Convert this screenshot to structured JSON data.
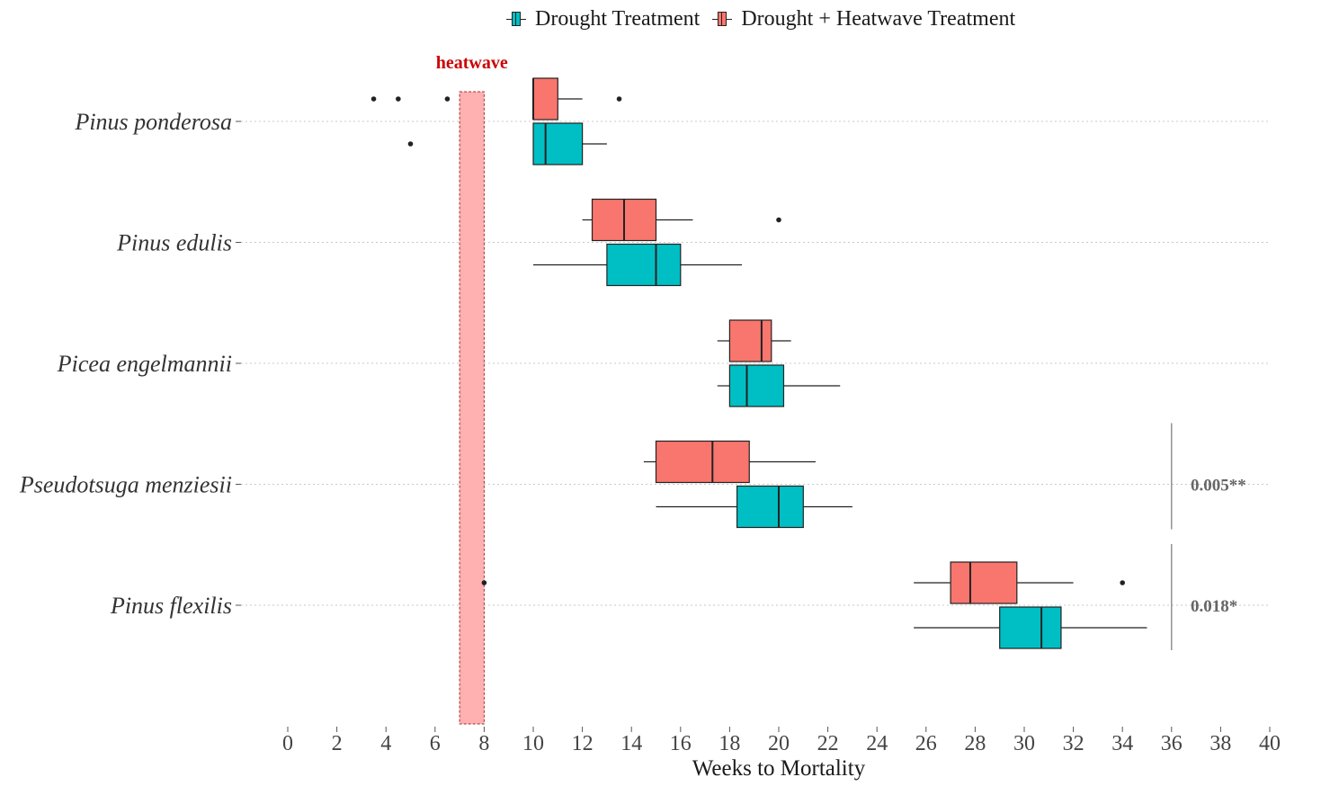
{
  "legend": {
    "items": [
      {
        "label": "Drought Treatment",
        "color": "#00BFC4"
      },
      {
        "label": "Drought + Heatwave Treatment",
        "color": "#F8766D"
      }
    ]
  },
  "chart_data": {
    "type": "boxplot",
    "orientation": "horizontal",
    "xlabel": "Weeks to Mortality",
    "ylabel": "",
    "xlim": [
      0,
      40
    ],
    "xticks": [
      0,
      2,
      4,
      6,
      8,
      10,
      12,
      14,
      16,
      18,
      20,
      22,
      24,
      26,
      28,
      30,
      32,
      34,
      36,
      38,
      40
    ],
    "grid": "horizontal dotted",
    "legend_position": "top",
    "heatwave_band": {
      "label": "heatwave",
      "start": 7,
      "end": 8,
      "color": "#FFB0B0",
      "label_color": "#CC0000"
    },
    "categories": [
      "Pinus ponderosa",
      "Pinus edulis",
      "Picea engelmannii",
      "Pseudotsuga menziesii",
      "Pinus flexilis"
    ],
    "series": [
      {
        "name": "Drought + Heatwave Treatment",
        "color": "#F8766D",
        "boxes": [
          {
            "category": "Pinus ponderosa",
            "whisker_low": 10,
            "q1": 10,
            "median": 10,
            "q3": 11,
            "whisker_high": 12,
            "outliers": [
              3.5,
              4.5,
              6.5,
              13.5
            ]
          },
          {
            "category": "Pinus edulis",
            "whisker_low": 12,
            "q1": 12.4,
            "median": 13.7,
            "q3": 15,
            "whisker_high": 16.5,
            "outliers": [
              20
            ]
          },
          {
            "category": "Picea engelmannii",
            "whisker_low": 17.5,
            "q1": 18,
            "median": 19.3,
            "q3": 19.7,
            "whisker_high": 20.5,
            "outliers": []
          },
          {
            "category": "Pseudotsuga menziesii",
            "whisker_low": 14.5,
            "q1": 15,
            "median": 17.3,
            "q3": 18.8,
            "whisker_high": 21.5,
            "outliers": []
          },
          {
            "category": "Pinus flexilis",
            "whisker_low": 25.5,
            "q1": 27,
            "median": 27.8,
            "q3": 29.7,
            "whisker_high": 32,
            "outliers": [
              8,
              34
            ]
          }
        ]
      },
      {
        "name": "Drought Treatment",
        "color": "#00BFC4",
        "boxes": [
          {
            "category": "Pinus ponderosa",
            "whisker_low": 10,
            "q1": 10,
            "median": 10.5,
            "q3": 12,
            "whisker_high": 13,
            "outliers": [
              5
            ]
          },
          {
            "category": "Pinus edulis",
            "whisker_low": 10,
            "q1": 13,
            "median": 15,
            "q3": 16,
            "whisker_high": 18.5,
            "outliers": []
          },
          {
            "category": "Picea engelmannii",
            "whisker_low": 17.5,
            "q1": 18,
            "median": 18.7,
            "q3": 20.2,
            "whisker_high": 22.5,
            "outliers": []
          },
          {
            "category": "Pseudotsuga menziesii",
            "whisker_low": 15,
            "q1": 18.3,
            "median": 20,
            "q3": 21,
            "whisker_high": 23,
            "outliers": []
          },
          {
            "category": "Pinus flexilis",
            "whisker_low": 25.5,
            "q1": 29,
            "median": 30.7,
            "q3": 31.5,
            "whisker_high": 35,
            "outliers": []
          }
        ]
      }
    ],
    "annotations": [
      {
        "category": "Pseudotsuga menziesii",
        "text": "0.005**"
      },
      {
        "category": "Pinus flexilis",
        "text": "0.018*"
      }
    ]
  }
}
